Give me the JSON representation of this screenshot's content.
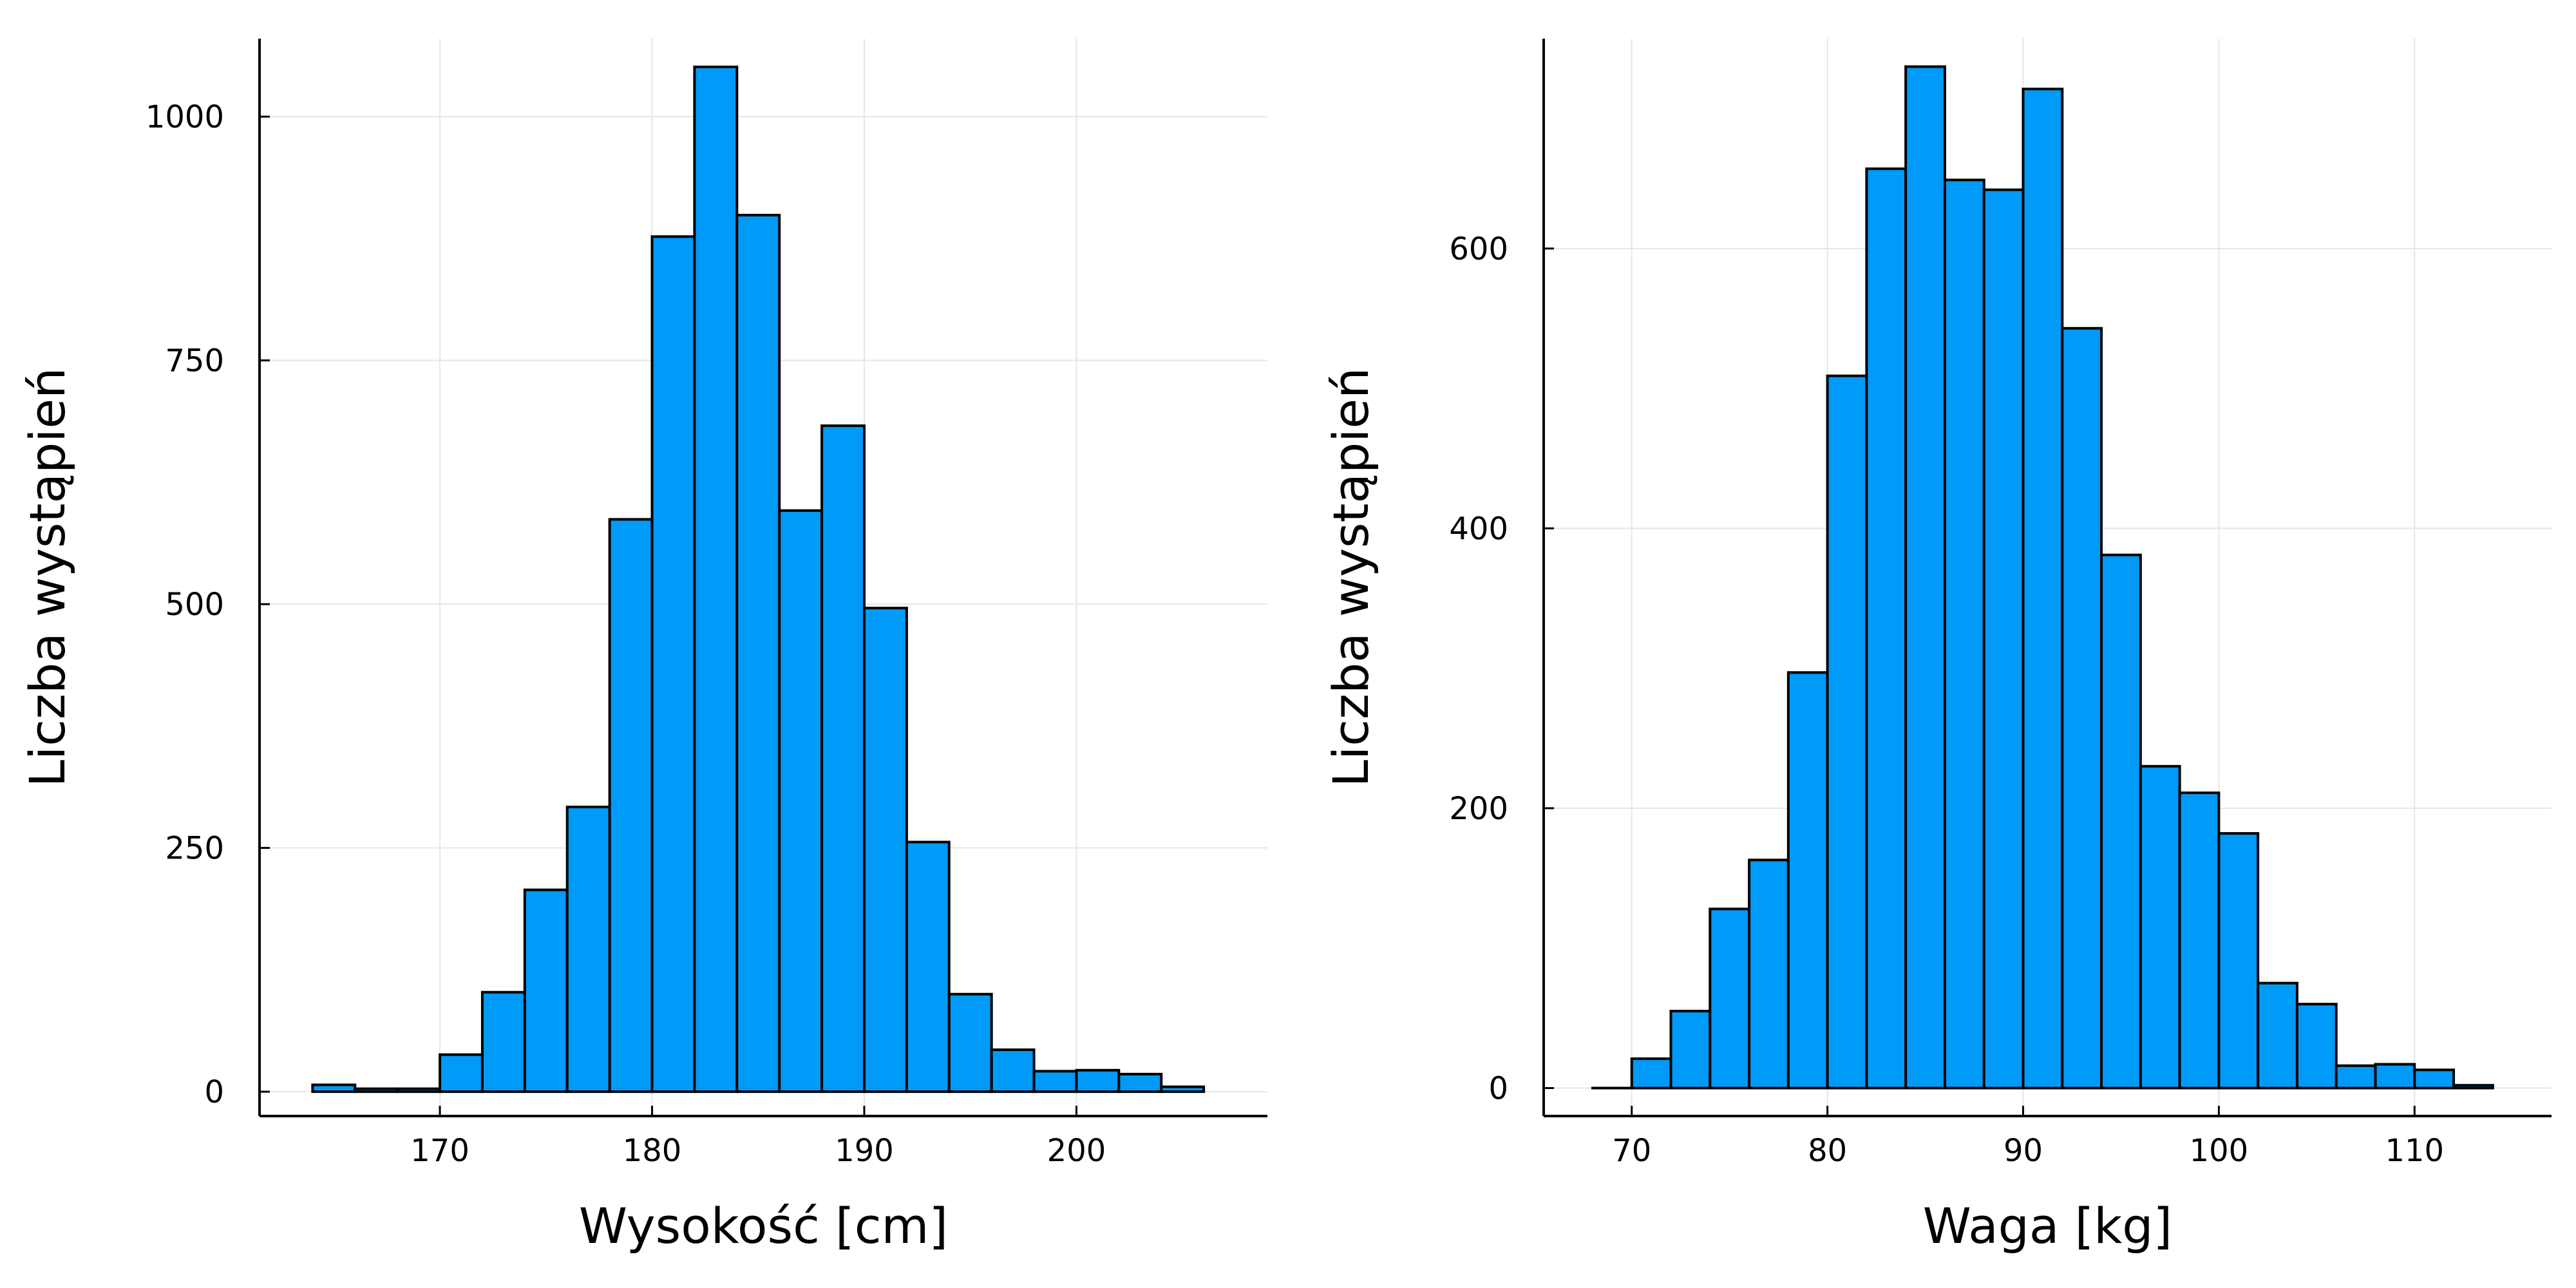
{
  "chart_data": [
    {
      "type": "bar",
      "xlabel": "Wysokość [cm]",
      "ylabel": "Liczba wystąpień",
      "xlim": [
        161.5,
        209
      ],
      "ylim": [
        -25,
        1080
      ],
      "xticks": [
        170,
        180,
        190,
        200
      ],
      "yticks": [
        0,
        250,
        500,
        750,
        1000
      ],
      "grid": true,
      "legend": "none",
      "bar_color": "#009af9",
      "bin_width": 2,
      "bins": [
        164,
        166,
        168,
        170,
        172,
        174,
        176,
        178,
        180,
        182,
        184,
        186,
        188,
        190,
        192,
        194,
        196,
        198,
        200,
        202,
        204
      ],
      "values": [
        7,
        3,
        3,
        38,
        102,
        207,
        292,
        587,
        877,
        1051,
        899,
        596,
        683,
        496,
        256,
        100,
        43,
        21,
        22,
        18,
        5
      ]
    },
    {
      "type": "bar",
      "xlabel": "Waga [kg]",
      "ylabel": "Liczba wystąpień",
      "xlim": [
        65.5,
        117
      ],
      "ylim": [
        -20,
        750
      ],
      "xticks": [
        70,
        80,
        90,
        100,
        110
      ],
      "yticks": [
        0,
        200,
        400,
        600
      ],
      "grid": true,
      "legend": "none",
      "bar_color": "#009af9",
      "bin_width": 2,
      "bins": [
        68,
        70,
        72,
        74,
        76,
        78,
        80,
        82,
        84,
        86,
        88,
        90,
        92,
        94,
        96,
        98,
        100,
        102,
        104,
        106,
        108,
        110,
        112
      ],
      "values": [
        0,
        21,
        55,
        128,
        163,
        297,
        509,
        657,
        730,
        649,
        642,
        714,
        543,
        381,
        230,
        211,
        182,
        75,
        60,
        16,
        17,
        13,
        2
      ]
    }
  ]
}
